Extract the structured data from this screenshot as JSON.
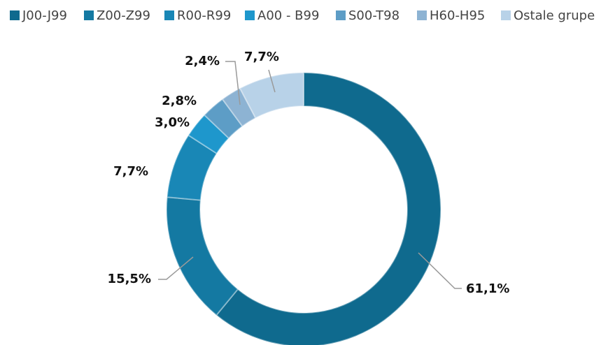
{
  "chart_data": {
    "type": "donut",
    "categories": [
      "J00-J99",
      "Z00-Z99",
      "R00-R99",
      "A00 - B99",
      "S00-T98",
      "H60-H95",
      "Ostale grupe"
    ],
    "values": [
      61.1,
      15.5,
      7.7,
      3.0,
      2.8,
      2.4,
      7.7
    ],
    "value_labels": [
      "61,1%",
      "15,5%",
      "7,7%",
      "3,0%",
      "2,8%",
      "2,4%",
      "7,7%"
    ],
    "colors": [
      "#0f6a8e",
      "#1479a2",
      "#1987b6",
      "#1e97cc",
      "#5d9dc6",
      "#8db3d3",
      "#b8d2e8"
    ],
    "legend": "top"
  }
}
